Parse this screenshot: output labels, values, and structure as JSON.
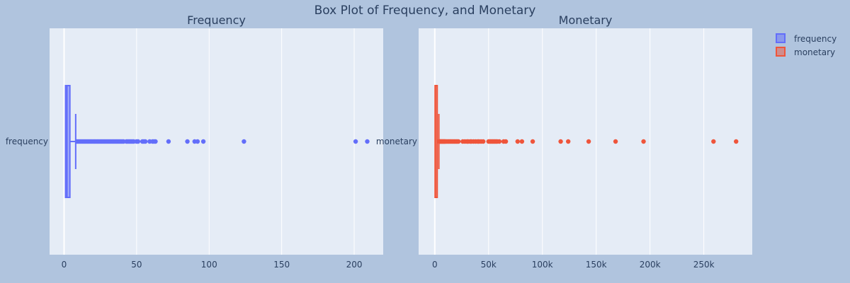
{
  "title": "Box Plot of Frequency, and Monetary",
  "legend": {
    "position": "top-right",
    "items": [
      {
        "label": "frequency",
        "color": "#636efa"
      },
      {
        "label": "monetary",
        "color": "#ef553b"
      }
    ]
  },
  "chart_data": [
    {
      "type": "box",
      "orientation": "horizontal",
      "title": "Frequency",
      "category_label": "frequency",
      "color": "#636efa",
      "xlim": [
        -10,
        220
      ],
      "xticks": [
        0,
        50,
        100,
        150,
        200
      ],
      "tick_labels": [
        "0",
        "50",
        "100",
        "150",
        "200"
      ],
      "grid": true,
      "stats": {
        "min": 1,
        "q1": 1,
        "median": 2,
        "q3": 4,
        "upper_fence": 8
      },
      "outliers": [
        9,
        10,
        11,
        12,
        13,
        14,
        15,
        16,
        17,
        18,
        19,
        20,
        21,
        22,
        23,
        24,
        25,
        26,
        27,
        28,
        29,
        30,
        31,
        32,
        33,
        34,
        35,
        36,
        37,
        38,
        39,
        40,
        41,
        43,
        44,
        45,
        46,
        47,
        48,
        50,
        51,
        54,
        55,
        56,
        59,
        61,
        62,
        63,
        72,
        85,
        90,
        92,
        96,
        124,
        201,
        209
      ]
    },
    {
      "type": "box",
      "orientation": "horizontal",
      "title": "Monetary",
      "category_label": "monetary",
      "color": "#ef553b",
      "xlim": [
        -15000,
        295000
      ],
      "xticks": [
        0,
        50000,
        100000,
        150000,
        200000,
        250000
      ],
      "tick_labels": [
        "0",
        "50k",
        "100k",
        "150k",
        "200k",
        "250k"
      ],
      "grid": true,
      "stats": {
        "min": 0,
        "q1": 300,
        "median": 650,
        "q3": 1700,
        "upper_fence": 3800
      },
      "outliers": [
        4000,
        4500,
        5000,
        5500,
        6000,
        6500,
        7000,
        7500,
        8000,
        8500,
        9000,
        9500,
        10000,
        11000,
        12000,
        13000,
        14000,
        15000,
        16000,
        17000,
        18000,
        19000,
        20000,
        21000,
        22000,
        26000,
        28000,
        30000,
        31000,
        33000,
        34000,
        36000,
        38000,
        40000,
        41000,
        43000,
        45000,
        50000,
        51000,
        52000,
        53000,
        54000,
        55000,
        56000,
        57000,
        58000,
        60000,
        64000,
        66000,
        77000,
        81000,
        91000,
        117000,
        124000,
        143000,
        168000,
        194000,
        259000,
        280000
      ]
    }
  ]
}
